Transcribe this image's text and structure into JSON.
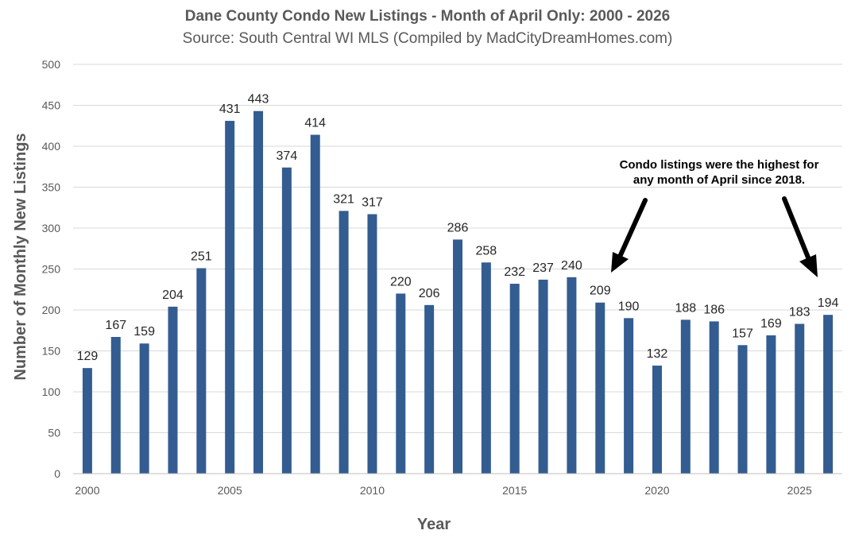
{
  "chart_data": {
    "type": "bar",
    "title": "Dane County Condo New Listings - Month of April Only: 2000 - 2026",
    "subtitle": "Source: South Central WI MLS (Compiled by MadCityDreamHomes.com)",
    "xlabel": "Year",
    "ylabel": "Number of Monthly New Listings",
    "ylim": [
      0,
      500
    ],
    "yticks": [
      "0",
      "50",
      "100",
      "150",
      "200",
      "250",
      "300",
      "350",
      "400",
      "450",
      "500"
    ],
    "xtick_labels": [
      "2000",
      "2005",
      "2010",
      "2015",
      "2020",
      "2025"
    ],
    "categories": [
      2000,
      2001,
      2002,
      2003,
      2004,
      2005,
      2006,
      2007,
      2008,
      2009,
      2010,
      2011,
      2012,
      2013,
      2014,
      2015,
      2016,
      2017,
      2018,
      2019,
      2020,
      2021,
      2022,
      2023,
      2024,
      2025,
      2026
    ],
    "values": [
      129,
      167,
      159,
      204,
      251,
      431,
      443,
      374,
      414,
      321,
      317,
      220,
      206,
      286,
      258,
      232,
      237,
      240,
      209,
      190,
      132,
      188,
      186,
      157,
      169,
      183,
      194
    ],
    "grid": true,
    "bar_color": "#335C91",
    "annotation": {
      "lines": [
        "Condo listings were the highest for",
        "any month of April since 2018."
      ],
      "arrow_targets": [
        2018,
        2026
      ]
    }
  }
}
